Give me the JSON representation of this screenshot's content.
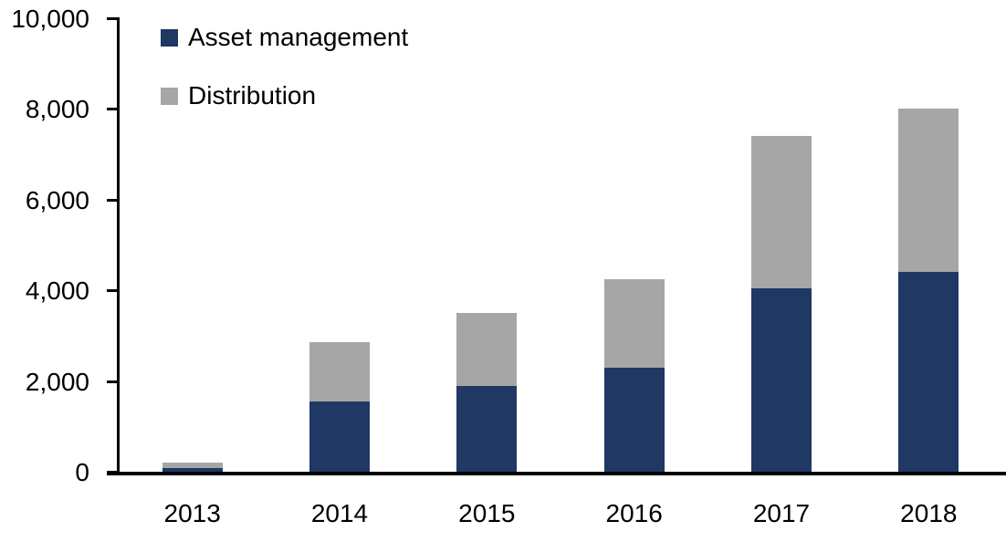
{
  "chart_data": {
    "type": "bar",
    "stacked": true,
    "title": "",
    "xlabel": "",
    "ylabel": "",
    "categories": [
      "2013",
      "2014",
      "2015",
      "2016",
      "2017",
      "2018"
    ],
    "series": [
      {
        "name": "Asset management",
        "color": "#1F3864",
        "values": [
          80,
          1550,
          1900,
          2300,
          4050,
          4400
        ]
      },
      {
        "name": "Distribution",
        "color": "#A6A6A6",
        "values": [
          120,
          1300,
          1600,
          1950,
          3350,
          3600
        ]
      }
    ],
    "stack_totals": [
      200,
      2850,
      3500,
      4250,
      7400,
      8000
    ],
    "ylim": [
      0,
      10000
    ],
    "yticks": [
      0,
      2000,
      4000,
      6000,
      8000,
      10000
    ],
    "ytick_labels": [
      "0",
      "2,000",
      "4,000",
      "6,000",
      "8,000",
      "10,000"
    ],
    "grid": false,
    "legend_position": "top-left-inside"
  },
  "colors": {
    "axis": "#000000",
    "text": "#000000",
    "background": "#FFFFFF"
  }
}
